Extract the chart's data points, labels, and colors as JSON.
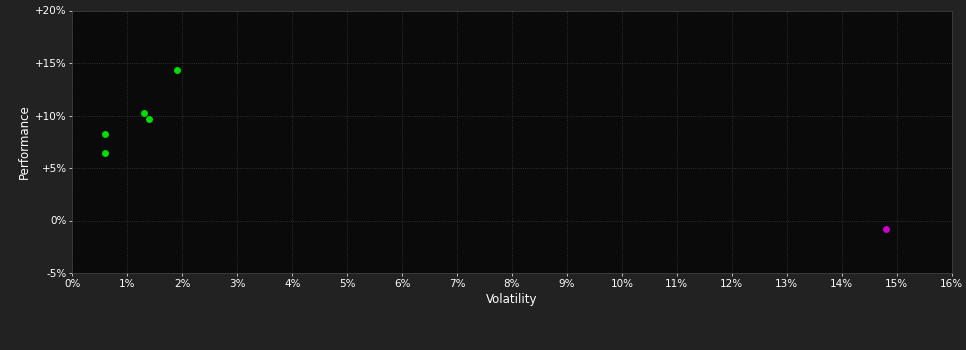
{
  "background_color": "#222222",
  "plot_bg_color": "#0a0a0a",
  "grid_color": "#3a3a3a",
  "text_color": "#ffffff",
  "xlabel": "Volatility",
  "ylabel": "Performance",
  "xlim": [
    0,
    0.16
  ],
  "ylim": [
    -0.05,
    0.2
  ],
  "xticks": [
    0.0,
    0.01,
    0.02,
    0.03,
    0.04,
    0.05,
    0.06,
    0.07,
    0.08,
    0.09,
    0.1,
    0.11,
    0.12,
    0.13,
    0.14,
    0.15,
    0.16
  ],
  "yticks": [
    -0.05,
    0.0,
    0.05,
    0.1,
    0.15,
    0.2
  ],
  "ytick_labels": [
    "-5%",
    "0%",
    "+5%",
    "+10%",
    "+15%",
    "+20%"
  ],
  "xtick_labels": [
    "0%",
    "1%",
    "2%",
    "3%",
    "4%",
    "5%",
    "6%",
    "7%",
    "8%",
    "9%",
    "10%",
    "11%",
    "12%",
    "13%",
    "14%",
    "15%",
    "16%"
  ],
  "green_points": [
    [
      0.006,
      0.082
    ],
    [
      0.006,
      0.064
    ],
    [
      0.013,
      0.102
    ],
    [
      0.014,
      0.097
    ],
    [
      0.019,
      0.143
    ]
  ],
  "magenta_points": [
    [
      0.148,
      -0.008
    ]
  ],
  "point_size": 25,
  "green_color": "#00dd00",
  "magenta_color": "#cc00cc"
}
